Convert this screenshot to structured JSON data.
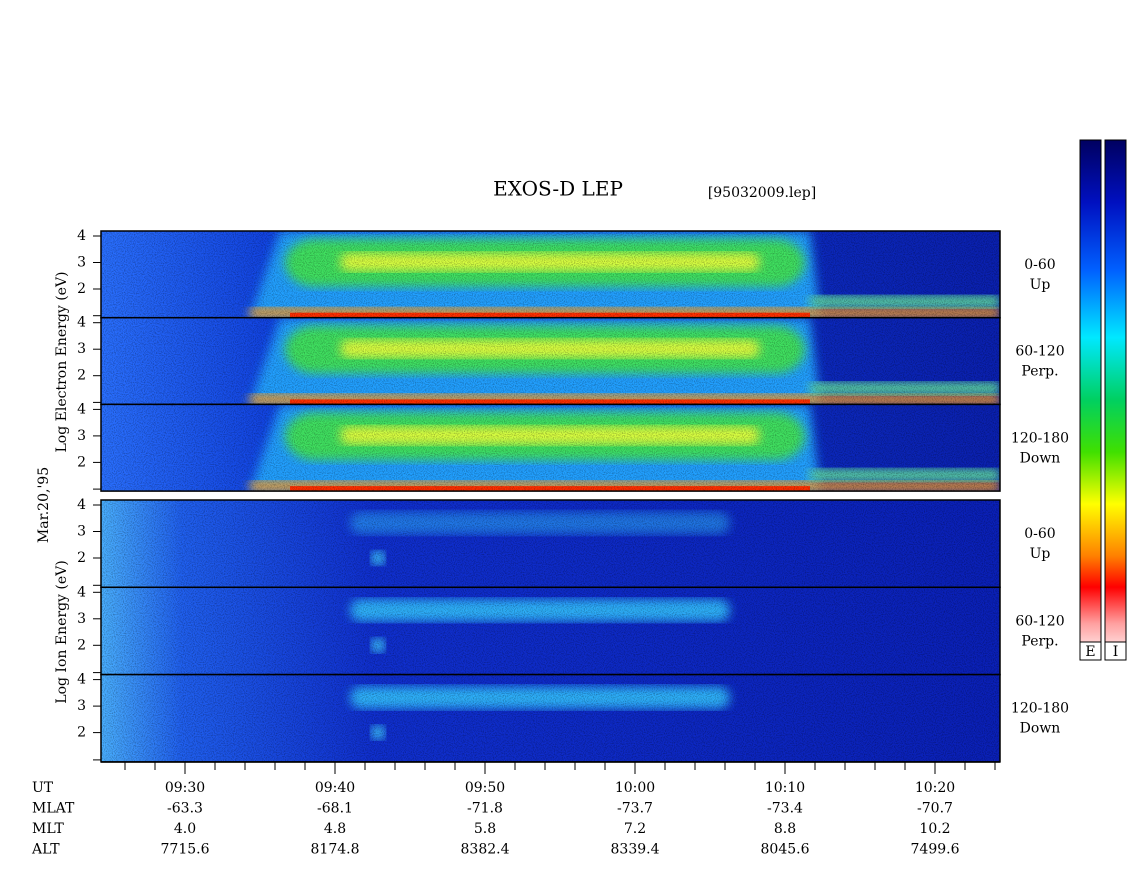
{
  "header": {
    "title": "EXOS-D LEP",
    "file": "[95032009.lep]"
  },
  "date": "Mar.20,'95",
  "electron": {
    "label": "Log Electron Energy (eV)",
    "rows": [
      {
        "angle": "0-60",
        "direction": "Up",
        "yticks": [
          "4",
          "3",
          "2"
        ]
      },
      {
        "angle": "60-120",
        "direction": "Perp.",
        "yticks": [
          "4",
          "3",
          "2"
        ]
      },
      {
        "angle": "120-180",
        "direction": "Down",
        "yticks": [
          "4",
          "3",
          "2"
        ]
      }
    ]
  },
  "ion": {
    "label": "Log Ion Energy (eV)",
    "rows": [
      {
        "angle": "0-60",
        "direction": "Up",
        "yticks": [
          "4",
          "3",
          "2"
        ]
      },
      {
        "angle": "60-120",
        "direction": "Perp.",
        "yticks": [
          "4",
          "3",
          "2"
        ]
      },
      {
        "angle": "120-180",
        "direction": "Down",
        "yticks": [
          "4",
          "3",
          "2"
        ]
      }
    ]
  },
  "colorbars": [
    "E",
    "I"
  ],
  "table": {
    "row_labels": [
      "UT",
      "MLAT",
      "MLT",
      "ALT"
    ],
    "columns": [
      [
        "09:30",
        "-63.3",
        "4.0",
        "7715.6"
      ],
      [
        "09:40",
        "-68.1",
        "4.8",
        "8174.8"
      ],
      [
        "09:50",
        "-71.8",
        "5.8",
        "8382.4"
      ],
      [
        "10:00",
        "-73.7",
        "7.2",
        "8339.4"
      ],
      [
        "10:10",
        "-73.4",
        "8.8",
        "8045.6"
      ],
      [
        "10:20",
        "-70.7",
        "10.2",
        "7499.6"
      ]
    ]
  }
}
